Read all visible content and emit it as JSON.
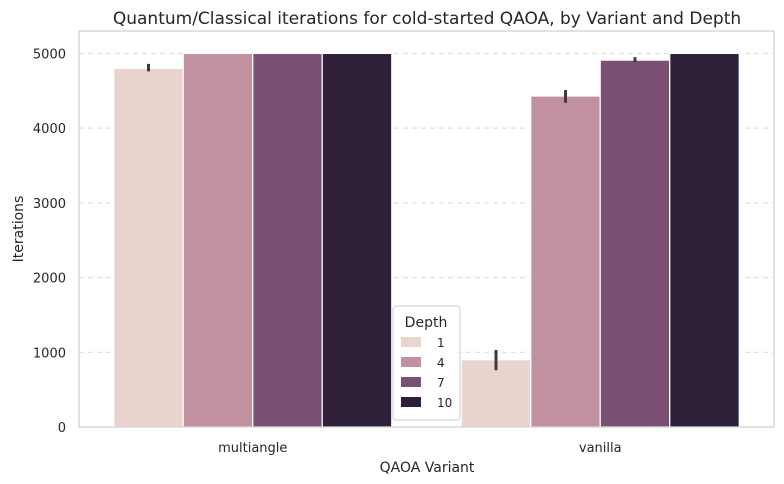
{
  "chart_data": {
    "type": "bar",
    "title": "Quantum/Classical iterations for cold-started QAOA, by Variant and Depth",
    "xlabel": "QAOA Variant",
    "ylabel": "Iterations",
    "categories": [
      "multiangle",
      "vanilla"
    ],
    "ylim": [
      0,
      5300
    ],
    "yticks": [
      0,
      1000,
      2000,
      3000,
      4000,
      5000
    ],
    "grid": true,
    "legend": {
      "title": "Depth",
      "placement": "lower-center"
    },
    "series": [
      {
        "name": "1",
        "color": "#ead4cf",
        "values": [
          4800,
          900
        ],
        "err_low": [
          4760,
          760
        ],
        "err_high": [
          4860,
          1030
        ]
      },
      {
        "name": "4",
        "color": "#c191a0",
        "values": [
          5000,
          4430
        ],
        "err_low": [
          5000,
          4340
        ],
        "err_high": [
          5000,
          4510
        ]
      },
      {
        "name": "7",
        "color": "#7a5074",
        "values": [
          5000,
          4910
        ],
        "err_low": [
          5000,
          4880
        ],
        "err_high": [
          5000,
          4950
        ]
      },
      {
        "name": "10",
        "color": "#2e2038",
        "values": [
          5000,
          5000
        ],
        "err_low": [
          5000,
          5000
        ],
        "err_high": [
          5000,
          5000
        ]
      }
    ]
  }
}
